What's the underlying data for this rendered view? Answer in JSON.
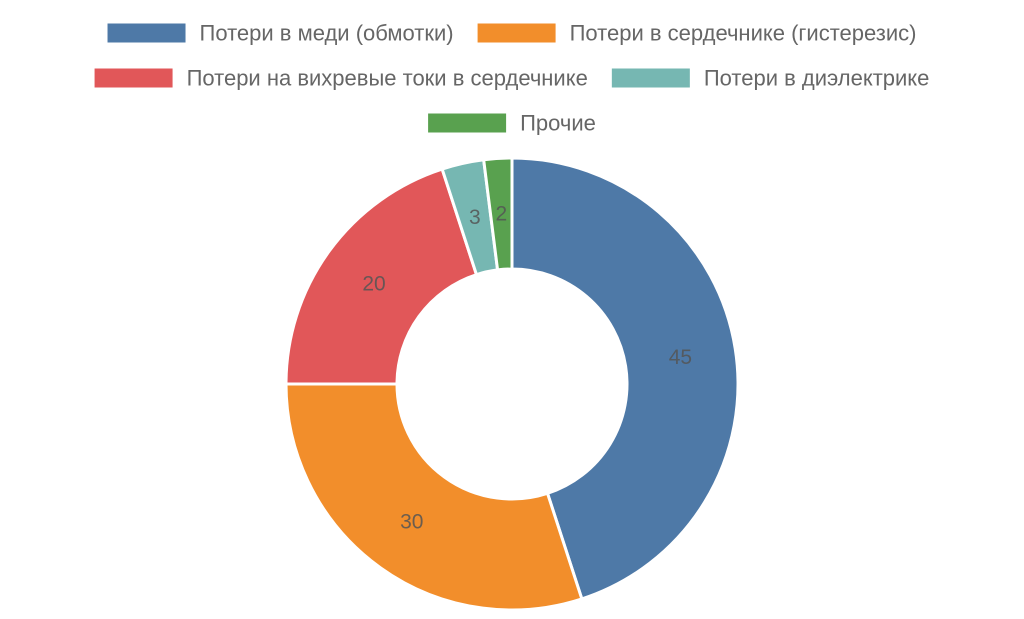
{
  "chart_data": {
    "type": "pie",
    "variant": "doughnut",
    "legend_position": "top",
    "categories": [
      "Потери в меди (обмотки)",
      "Потери в сердечнике (гистерезис)",
      "Потери на вихревые токи в сердечнике",
      "Потери в диэлектрике",
      "Прочие"
    ],
    "values": [
      45,
      30,
      20,
      3,
      2
    ],
    "colors": [
      "#4e79a7",
      "#f28e2b",
      "#e15759",
      "#76b7b2",
      "#59a14f"
    ],
    "data_labels": [
      "45",
      "30",
      "20",
      "3",
      "2"
    ]
  }
}
